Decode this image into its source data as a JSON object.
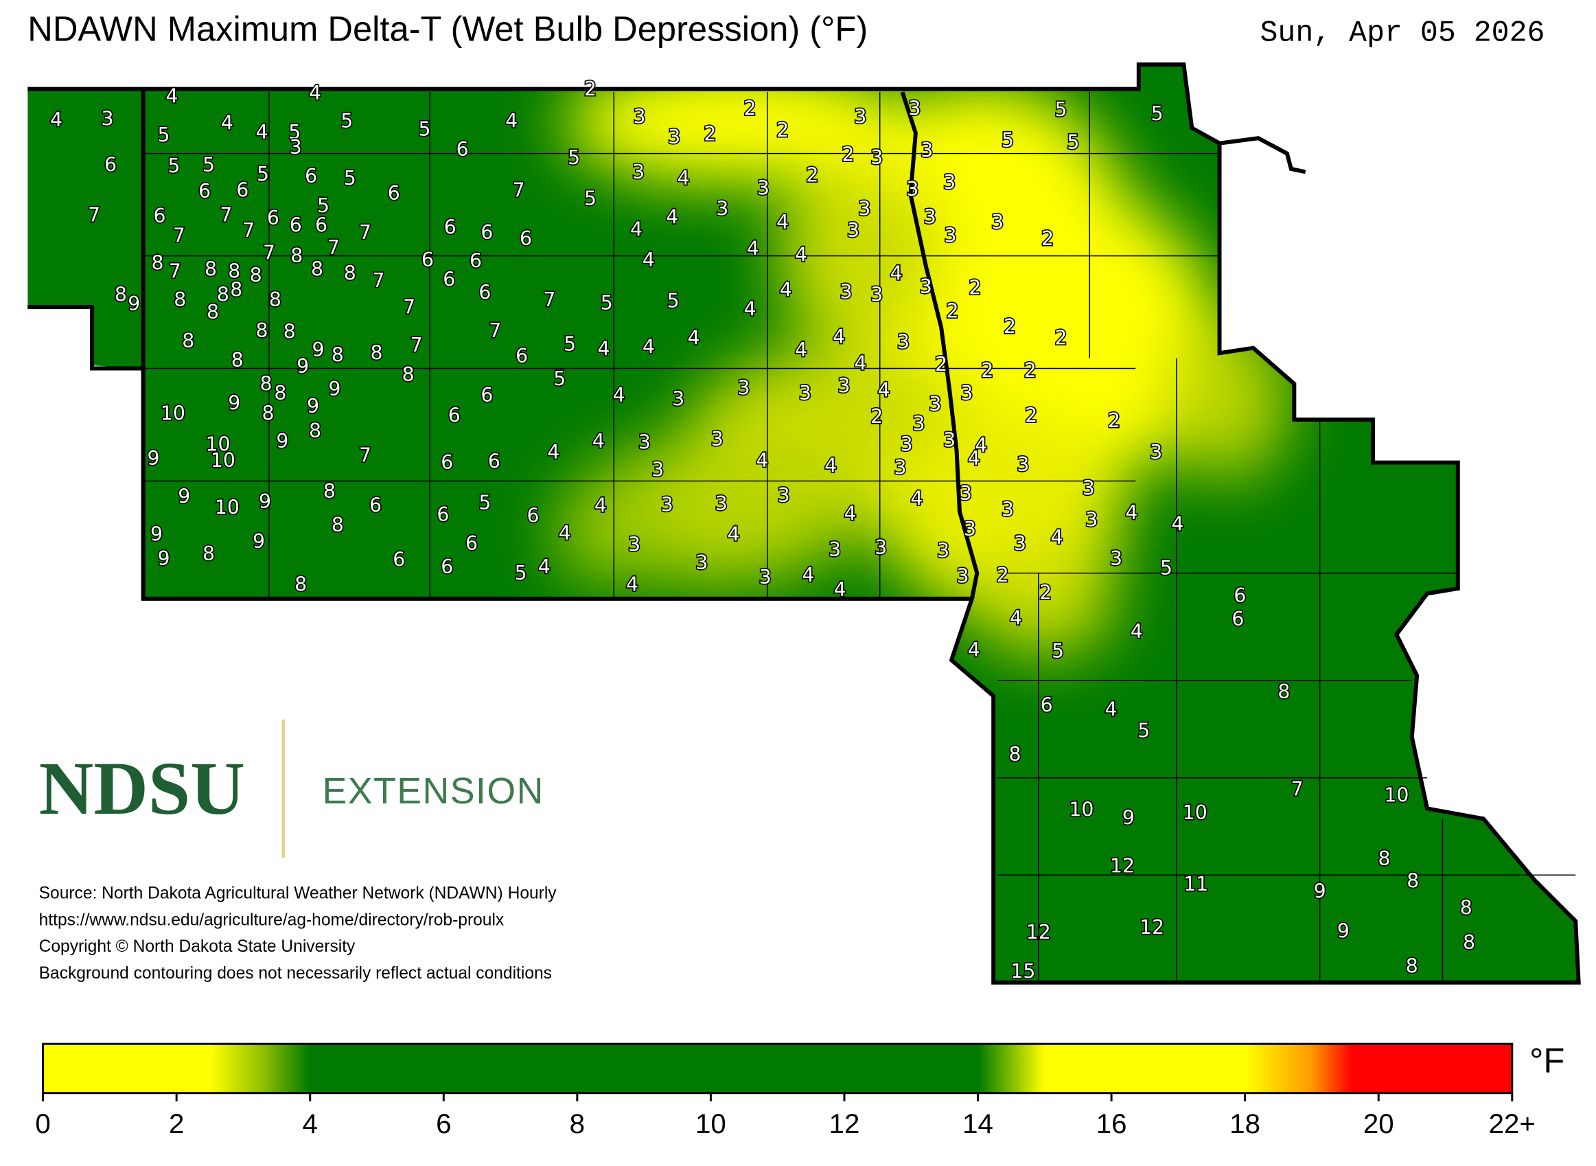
{
  "header": {
    "title": "NDAWN Maximum Delta-T (Wet Bulb Depression) (°F)",
    "date": "Sun, Apr 05 2026"
  },
  "logo": {
    "name": "NDSU",
    "unit": "EXTENSION"
  },
  "source": [
    "Source: North Dakota Agricultural Weather Network (NDAWN) Hourly",
    "https://www.ndsu.edu/agriculture/ag-home/directory/rob-proulx",
    "Copyright © North Dakota State University",
    "Background contouring does not necessarily reflect actual conditions"
  ],
  "map": {
    "stations": [
      4,
      3,
      4,
      4,
      2,
      5,
      4,
      4,
      5,
      3,
      5,
      5,
      4,
      3,
      2,
      3,
      3,
      5,
      5,
      6,
      5,
      5,
      6,
      5,
      3,
      2,
      2,
      5,
      5,
      5,
      6,
      5,
      6,
      3,
      4,
      2,
      3,
      3,
      2,
      6,
      6,
      7,
      5,
      3,
      3,
      3,
      7,
      6,
      7,
      5,
      6,
      6,
      6,
      3,
      3,
      3,
      7,
      7,
      7,
      6,
      6,
      6,
      4,
      4,
      4,
      3,
      3,
      3,
      2,
      7,
      7,
      8,
      8,
      7,
      8,
      8,
      8,
      8,
      8,
      7,
      6,
      6,
      6,
      4,
      4,
      4,
      4,
      8,
      9,
      8,
      8,
      8,
      8,
      8,
      7,
      6,
      7,
      5,
      5,
      4,
      4,
      3,
      3,
      3,
      2,
      2,
      8,
      8,
      8,
      7,
      7,
      5,
      4,
      4,
      4,
      4,
      3,
      2,
      2,
      8,
      9,
      9,
      8,
      8,
      6,
      4,
      4,
      2,
      2,
      2,
      8,
      8,
      9,
      8,
      5,
      4,
      3,
      3,
      3,
      3,
      4,
      3,
      3,
      10,
      9,
      8,
      9,
      8,
      6,
      6,
      2,
      3,
      2,
      2,
      10,
      10,
      9,
      9,
      7,
      6,
      6,
      4,
      4,
      3,
      3,
      4,
      4,
      3,
      3,
      4,
      4,
      3,
      3,
      3,
      3,
      9,
      10,
      9,
      8,
      6,
      6,
      5,
      6,
      4,
      3,
      3,
      3,
      4,
      4,
      3,
      3,
      3,
      3,
      4,
      4,
      9,
      9,
      8,
      9,
      8,
      6,
      6,
      6,
      5,
      4,
      4,
      3,
      4,
      3,
      3,
      4,
      3,
      3,
      3,
      3,
      3,
      4,
      3,
      5,
      8,
      4,
      4,
      3,
      2,
      2,
      6,
      6,
      4,
      4,
      4,
      5,
      8,
      6,
      4,
      5,
      8,
      7,
      10,
      10,
      9,
      10,
      8,
      12,
      11,
      8,
      9,
      8,
      12,
      12,
      9,
      8,
      15,
      8
    ]
  },
  "colorbar": {
    "unit": "°F",
    "range": [
      0,
      22
    ],
    "stops": [
      [
        0,
        "#ffff00"
      ],
      [
        2.5,
        "#ffff00"
      ],
      [
        3.3,
        "#8fbf00"
      ],
      [
        4,
        "#007a00"
      ],
      [
        14,
        "#007a00"
      ],
      [
        15,
        "#ffff00"
      ],
      [
        18,
        "#ffff00"
      ],
      [
        19,
        "#ff9900"
      ],
      [
        19.6,
        "#ff0000"
      ],
      [
        22,
        "#ff0000"
      ]
    ],
    "ticks": [
      0,
      2,
      4,
      6,
      8,
      10,
      12,
      14,
      16,
      18,
      20,
      {
        "value": 22,
        "label": "22+"
      }
    ]
  }
}
